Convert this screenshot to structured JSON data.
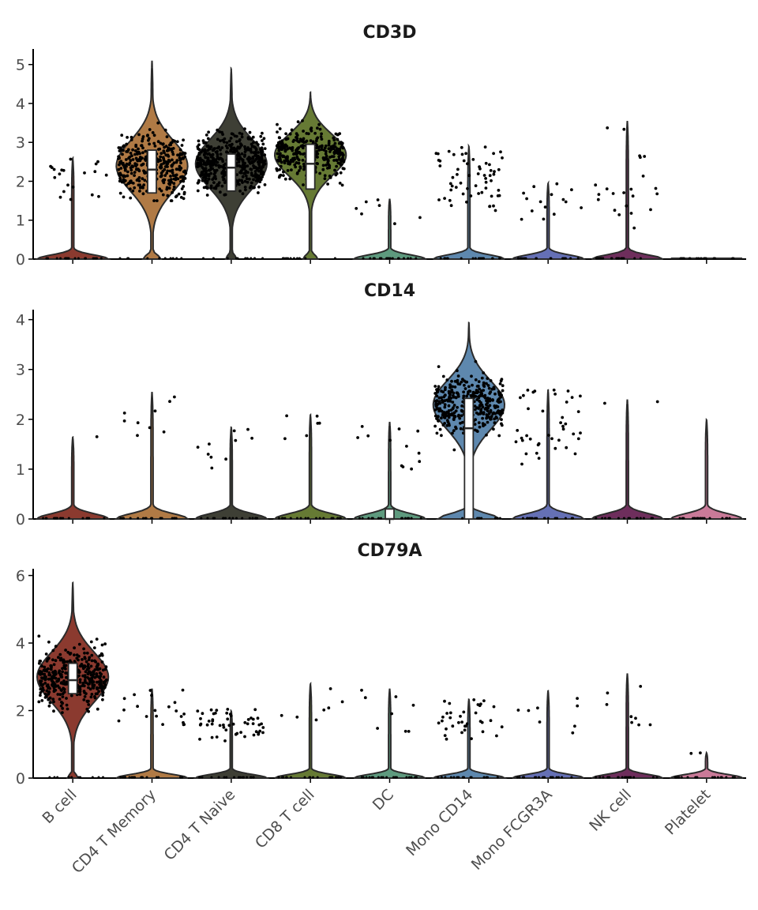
{
  "chart_data": {
    "type": "violin",
    "categories": [
      "B cell",
      "CD4 T Memory",
      "CD4 T Naive",
      "CD8 T cell",
      "DC",
      "Mono CD14",
      "Mono FCGR3A",
      "NK cell",
      "Platelet"
    ],
    "colors": [
      "#8B3A2F",
      "#B07A45",
      "#3E3F35",
      "#667A34",
      "#5E9A7E",
      "#5E88AE",
      "#6570B5",
      "#6E2E5C",
      "#C97A98"
    ],
    "panels": [
      {
        "title": "CD3D",
        "ylim": [
          0,
          5.4
        ],
        "yticks": [
          0,
          1,
          2,
          3,
          4,
          5
        ],
        "violins": [
          {
            "max": 2.6,
            "mode": 0.05,
            "median": null,
            "q1": null,
            "q3": null,
            "points": 20,
            "ptmin": 1.4,
            "ptmax": 2.6,
            "zeroWidth": 0.5
          },
          {
            "max": 5.1,
            "mode": 2.4,
            "median": 2.3,
            "q1": 1.7,
            "q3": 2.8,
            "points": 380,
            "ptmin": 1.5,
            "ptmax": 4.7,
            "zeroWidth": 0.25
          },
          {
            "max": 4.9,
            "mode": 2.45,
            "median": 2.35,
            "q1": 1.75,
            "q3": 2.7,
            "points": 520,
            "ptmin": 1.1,
            "ptmax": 4.9,
            "zeroWidth": 0.15
          },
          {
            "max": 4.3,
            "mode": 2.7,
            "median": 2.45,
            "q1": 1.8,
            "q3": 2.95,
            "points": 340,
            "ptmin": 1.6,
            "ptmax": 4.3,
            "zeroWidth": 0.2
          },
          {
            "max": 1.55,
            "mode": 0.05,
            "median": null,
            "q1": null,
            "q3": null,
            "points": 7,
            "ptmin": 0.9,
            "ptmax": 1.6,
            "zeroWidth": 0.9
          },
          {
            "max": 2.9,
            "mode": 0.05,
            "median": null,
            "q1": null,
            "q3": null,
            "points": 60,
            "ptmin": 1.2,
            "ptmax": 2.9,
            "zeroWidth": 0.9
          },
          {
            "max": 1.95,
            "mode": 0.05,
            "median": null,
            "q1": null,
            "q3": null,
            "points": 15,
            "ptmin": 1.0,
            "ptmax": 1.95,
            "zeroWidth": 0.9
          },
          {
            "max": 3.55,
            "mode": 0.05,
            "median": null,
            "q1": null,
            "q3": null,
            "points": 22,
            "ptmin": 0.8,
            "ptmax": 3.6,
            "zeroWidth": 0.9
          },
          {
            "max": 0.03,
            "mode": 0.0,
            "median": null,
            "q1": null,
            "q3": null,
            "points": 0,
            "ptmin": 0,
            "ptmax": 0,
            "zeroWidth": 0.9
          }
        ]
      },
      {
        "title": "CD14",
        "ylim": [
          0,
          4.2
        ],
        "yticks": [
          0,
          1,
          2,
          3,
          4
        ],
        "violins": [
          {
            "max": 1.65,
            "mode": 0.0,
            "median": null,
            "q1": null,
            "q3": null,
            "points": 1,
            "ptmin": 1.65,
            "ptmax": 1.65,
            "zeroWidth": 0.9
          },
          {
            "max": 2.55,
            "mode": 0.0,
            "median": null,
            "q1": null,
            "q3": null,
            "points": 9,
            "ptmin": 1.5,
            "ptmax": 2.5,
            "zeroWidth": 0.9
          },
          {
            "max": 1.85,
            "mode": 0.0,
            "median": null,
            "q1": null,
            "q3": null,
            "points": 10,
            "ptmin": 1.0,
            "ptmax": 1.85,
            "zeroWidth": 0.9
          },
          {
            "max": 2.1,
            "mode": 0.0,
            "median": null,
            "q1": null,
            "q3": null,
            "points": 6,
            "ptmin": 1.6,
            "ptmax": 2.1,
            "zeroWidth": 0.9
          },
          {
            "max": 1.95,
            "mode": 0.05,
            "median": 0.0,
            "q1": 0.0,
            "q3": 0.2,
            "points": 12,
            "ptmin": 1.0,
            "ptmax": 1.95,
            "zeroWidth": 0.9
          },
          {
            "max": 3.95,
            "mode": 2.3,
            "median": 1.82,
            "q1": 0.0,
            "q3": 2.42,
            "points": 360,
            "ptmin": 1.3,
            "ptmax": 3.95,
            "zeroWidth": 0.85
          },
          {
            "max": 2.6,
            "mode": 0.2,
            "median": null,
            "q1": null,
            "q3": null,
            "points": 40,
            "ptmin": 1.1,
            "ptmax": 2.6,
            "zeroWidth": 0.9
          },
          {
            "max": 2.4,
            "mode": 0.0,
            "median": null,
            "q1": null,
            "q3": null,
            "points": 2,
            "ptmin": 1.8,
            "ptmax": 2.4,
            "zeroWidth": 0.9
          },
          {
            "max": 2.0,
            "mode": 0.3,
            "median": null,
            "q1": null,
            "q3": null,
            "points": 0,
            "ptmin": 0,
            "ptmax": 0,
            "zeroWidth": 0.9
          }
        ]
      },
      {
        "title": "CD79A",
        "ylim": [
          0,
          6.2
        ],
        "yticks": [
          0,
          2,
          4,
          6
        ],
        "violins": [
          {
            "max": 5.8,
            "mode": 3.0,
            "median": 2.9,
            "q1": 2.5,
            "q3": 3.4,
            "points": 420,
            "ptmin": 1.3,
            "ptmax": 5.8,
            "zeroWidth": 0.15
          },
          {
            "max": 2.65,
            "mode": 0.05,
            "median": null,
            "q1": null,
            "q3": null,
            "points": 20,
            "ptmin": 1.4,
            "ptmax": 2.65,
            "zeroWidth": 0.9
          },
          {
            "max": 2.0,
            "mode": 0.05,
            "median": null,
            "q1": null,
            "q3": null,
            "points": 50,
            "ptmin": 1.1,
            "ptmax": 2.05,
            "zeroWidth": 0.9
          },
          {
            "max": 2.8,
            "mode": 0.05,
            "median": null,
            "q1": null,
            "q3": null,
            "points": 7,
            "ptmin": 1.6,
            "ptmax": 2.8,
            "zeroWidth": 0.9
          },
          {
            "max": 2.65,
            "mode": 0.3,
            "median": null,
            "q1": null,
            "q3": null,
            "points": 8,
            "ptmin": 0.9,
            "ptmax": 2.7,
            "zeroWidth": 0.9
          },
          {
            "max": 2.35,
            "mode": 0.05,
            "median": null,
            "q1": null,
            "q3": null,
            "points": 35,
            "ptmin": 1.1,
            "ptmax": 2.35,
            "zeroWidth": 0.9
          },
          {
            "max": 2.6,
            "mode": 0.05,
            "median": null,
            "q1": null,
            "q3": null,
            "points": 8,
            "ptmin": 1.0,
            "ptmax": 2.6,
            "zeroWidth": 0.9
          },
          {
            "max": 3.1,
            "mode": 0.05,
            "median": null,
            "q1": null,
            "q3": null,
            "points": 8,
            "ptmin": 1.5,
            "ptmax": 3.1,
            "zeroWidth": 0.9
          },
          {
            "max": 0.75,
            "mode": 0.1,
            "median": null,
            "q1": null,
            "q3": null,
            "points": 2,
            "ptmin": 0.7,
            "ptmax": 0.75,
            "zeroWidth": 0.9
          }
        ]
      }
    ]
  }
}
